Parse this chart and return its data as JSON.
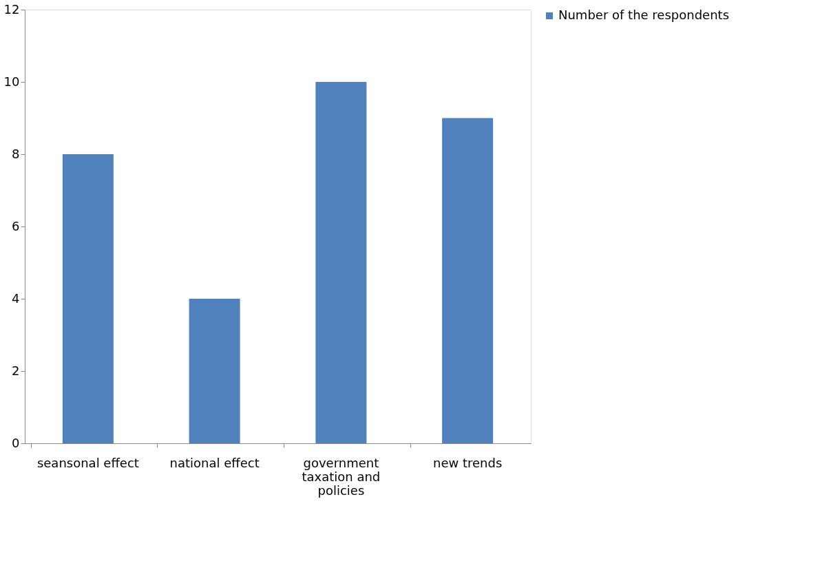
{
  "chart_data": {
    "type": "bar",
    "categories": [
      "seansonal effect",
      "national effect",
      "government taxation and policies",
      "new trends"
    ],
    "series": [
      {
        "name": "Number of the respondents",
        "color": "#4f81bd",
        "values": [
          8,
          4,
          10,
          9
        ]
      }
    ],
    "ylim": [
      0,
      12
    ],
    "yticks": [
      0,
      2,
      4,
      6,
      8,
      10,
      12
    ],
    "grid": false,
    "legend": "right"
  }
}
